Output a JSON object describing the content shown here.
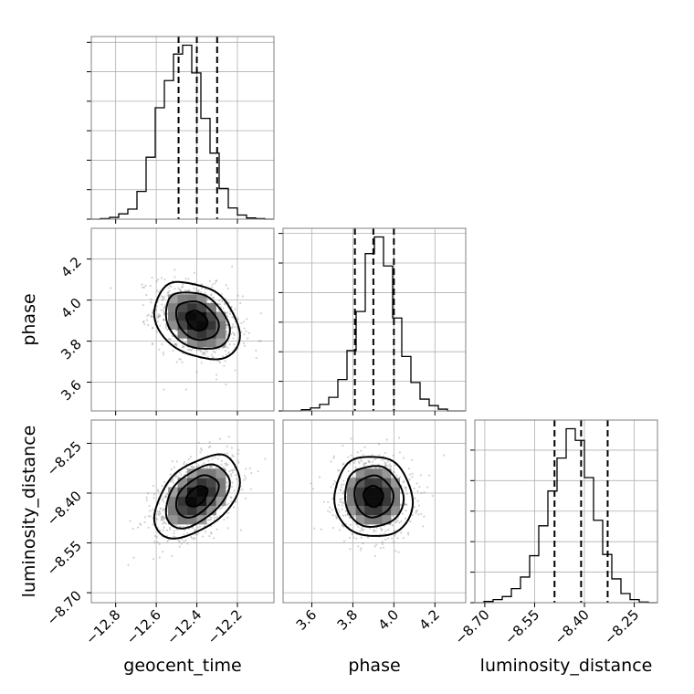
{
  "chart_data": {
    "type": "corner",
    "parameters": [
      "geocent_time",
      "phase",
      "luminosity_distance"
    ],
    "grid": true,
    "histograms": [
      {
        "parameter": "geocent_time",
        "xlim": [
          -12.92,
          -12.02
        ],
        "bin_edges": [
          -12.92,
          -12.875,
          -12.83,
          -12.785,
          -12.74,
          -12.695,
          -12.65,
          -12.605,
          -12.56,
          -12.515,
          -12.47,
          -12.425,
          -12.38,
          -12.335,
          -12.29,
          -12.245,
          -12.2,
          -12.155,
          -12.11,
          -12.065,
          -12.02
        ],
        "counts": [
          0,
          1,
          3,
          9,
          17,
          47,
          105,
          189,
          235,
          280,
          295,
          248,
          171,
          112,
          52,
          19,
          7,
          2,
          1,
          0
        ],
        "quantiles": [
          -12.49,
          -12.4,
          -12.3
        ]
      },
      {
        "parameter": "phase",
        "xlim": [
          3.46,
          4.35
        ],
        "bin_edges": [
          3.46,
          3.5045,
          3.549,
          3.5935,
          3.638,
          3.6825,
          3.727,
          3.7715,
          3.816,
          3.8605,
          3.905,
          3.9495,
          3.994,
          4.0385,
          4.083,
          4.1275,
          4.172,
          4.2165,
          4.261,
          4.3055,
          4.35
        ],
        "counts": [
          0,
          0,
          2,
          5,
          11,
          23,
          53,
          102,
          168,
          266,
          294,
          245,
          157,
          92,
          48,
          20,
          9,
          3,
          0,
          0
        ],
        "quantiles": [
          3.81,
          3.9,
          4.0
        ]
      },
      {
        "parameter": "luminosity_distance",
        "xlim": [
          -8.73,
          -8.18
        ],
        "bin_edges": [
          -8.73,
          -8.7025,
          -8.675,
          -8.6475,
          -8.62,
          -8.5925,
          -8.565,
          -8.5375,
          -8.51,
          -8.4825,
          -8.455,
          -8.4275,
          -8.4,
          -8.3725,
          -8.345,
          -8.3175,
          -8.29,
          -8.2625,
          -8.235,
          -8.2075,
          -8.18
        ],
        "counts": [
          0,
          2,
          5,
          10,
          23,
          42,
          77,
          126,
          183,
          237,
          285,
          266,
          205,
          135,
          79,
          39,
          15,
          5,
          1,
          0
        ],
        "quantiles": [
          -8.49,
          -8.41,
          -8.33
        ]
      }
    ],
    "joint": [
      {
        "x": "geocent_time",
        "y": "phase",
        "xlim": [
          -12.92,
          -12.02
        ],
        "ylim": [
          3.46,
          4.35
        ],
        "mean": [
          -12.4,
          3.9
        ],
        "sd": [
          0.105,
          0.095
        ],
        "rho": -0.3
      },
      {
        "x": "geocent_time",
        "y": "luminosity_distance",
        "xlim": [
          -12.92,
          -12.02
        ],
        "ylim": [
          -8.73,
          -8.18
        ],
        "mean": [
          -12.4,
          -8.41
        ],
        "sd": [
          0.105,
          0.062
        ],
        "rho": 0.45
      },
      {
        "x": "phase",
        "y": "luminosity_distance",
        "xlim": [
          3.46,
          4.35
        ],
        "ylim": [
          -8.73,
          -8.18
        ],
        "mean": [
          3.9,
          -8.41
        ],
        "sd": [
          0.095,
          0.062
        ],
        "rho": -0.05
      }
    ],
    "ticks": {
      "geocent_time": [
        -12.8,
        -12.6,
        -12.4,
        -12.2
      ],
      "phase": [
        3.6,
        3.8,
        4.0,
        4.2
      ],
      "luminosity_distance": [
        -8.7,
        -8.55,
        -8.4,
        -8.25
      ]
    },
    "tick_labels": {
      "geocent_time": [
        "−12.8",
        "−12.6",
        "−12.4",
        "−12.2"
      ],
      "phase": [
        "3.6",
        "3.8",
        "4.0",
        "4.2"
      ],
      "luminosity_distance": [
        "−8.70",
        "−8.55",
        "−8.40",
        "−8.25"
      ]
    },
    "labels": {
      "geocent_time": "geocent_time",
      "phase": "phase",
      "luminosity_distance": "luminosity_distance"
    },
    "colors": {
      "line": "#000000",
      "grid": "#b0b0b0",
      "scatter": "#7f7f7f"
    }
  }
}
